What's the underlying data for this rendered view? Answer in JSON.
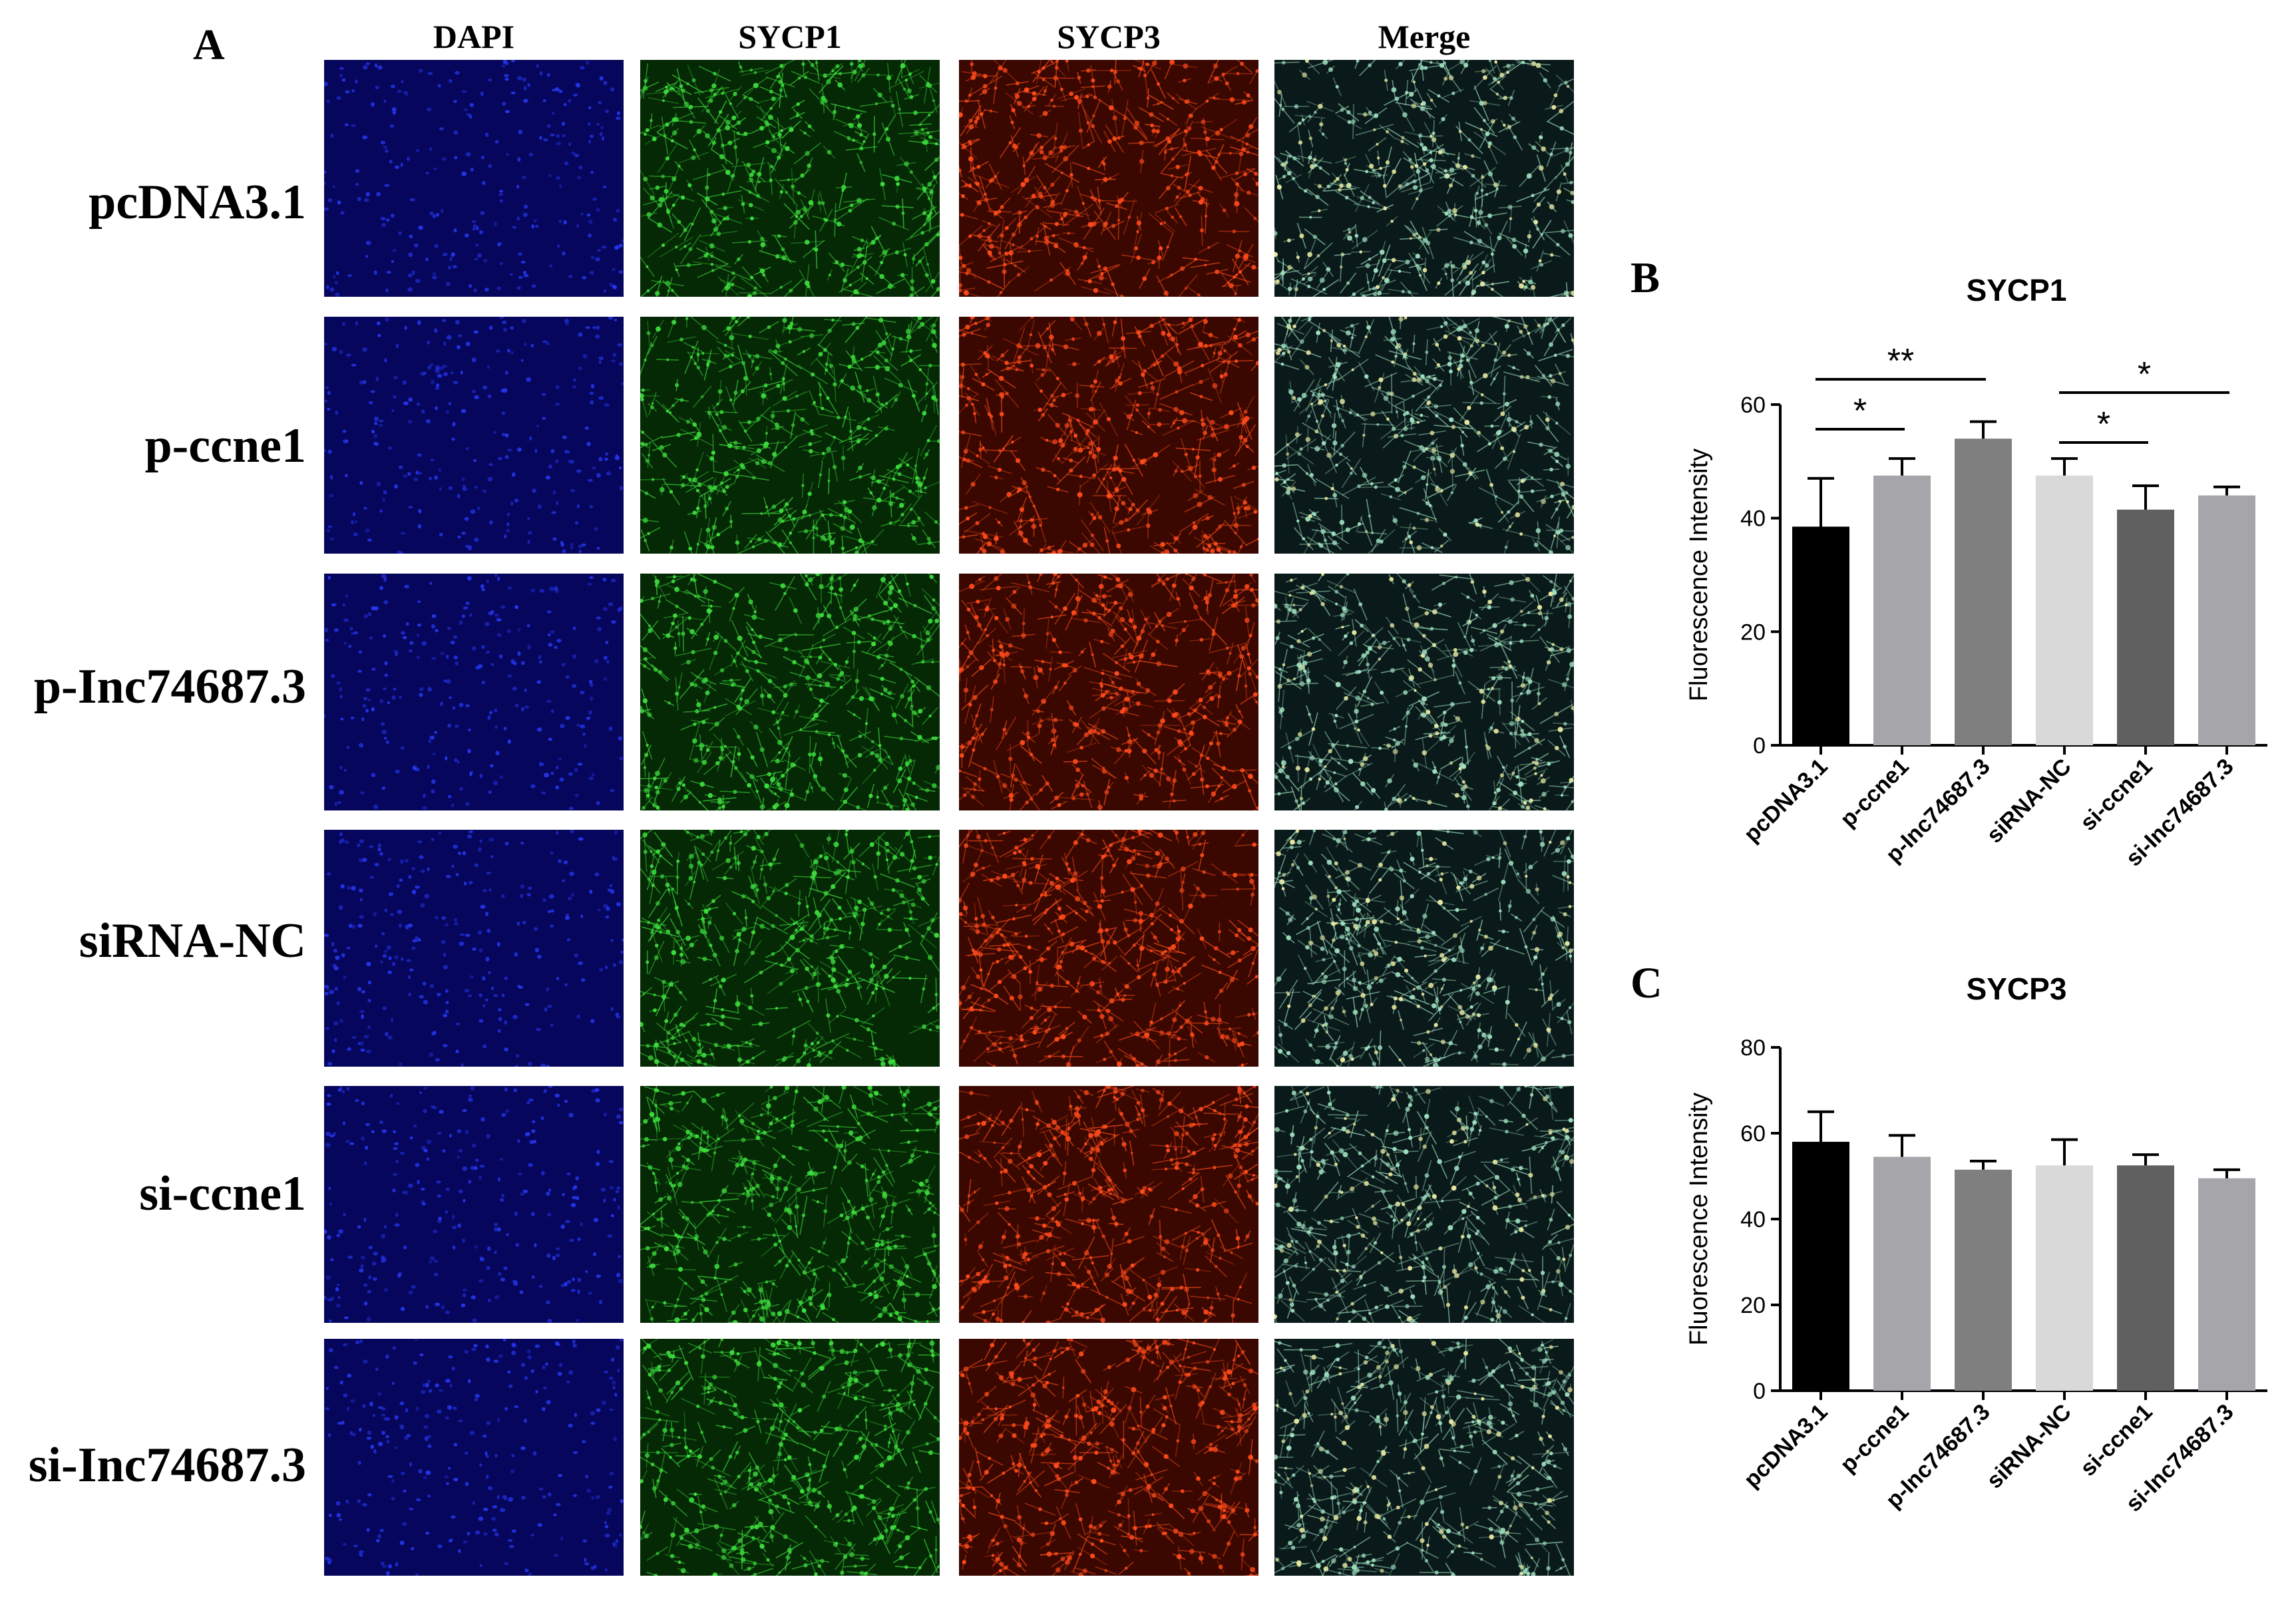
{
  "panels": {
    "A": "A",
    "B": "B",
    "C": "C"
  },
  "columns": [
    "DAPI",
    "SYCP1",
    "SYCP3",
    "Merge"
  ],
  "rows": [
    "pcDNA3.1",
    "p-ccne1",
    "p-Inc74687.3",
    "siRNA-NC",
    "si-ccne1",
    "si-Inc74687.3"
  ],
  "colors": {
    "dapi_bg": "#06065c",
    "dapi_cell": "#2a3cff",
    "sycp1_bg": "#052805",
    "sycp1_cell": "#3cdc3c",
    "sycp3_bg": "#3a0800",
    "sycp3_cell": "#ff4a1a",
    "merge_bg": "#0a1a1a",
    "merge_cell": "#9fe0c0",
    "bar_colors": [
      "#000000",
      "#a6a6aa",
      "#7f7f80",
      "#d9d9d9",
      "#606060",
      "#a6a6aa"
    ]
  },
  "chart_data": [
    {
      "type": "bar",
      "title": "SYCP1",
      "ylabel": "Fluorescence Intensity",
      "xlabel": "",
      "categories": [
        "pcDNA3.1",
        "p-ccne1",
        "p-Inc74687.3",
        "siRNA-NC",
        "si-ccne1",
        "si-Inc74687.3"
      ],
      "values": [
        38.5,
        47.5,
        54,
        47.5,
        41.5,
        44
      ],
      "errors": [
        8.5,
        3,
        3,
        3,
        4.2,
        1.5
      ],
      "ylim": [
        0,
        60
      ],
      "yticks": [
        0,
        20,
        40,
        60
      ],
      "significance": [
        {
          "from": 0,
          "to": 1,
          "label": "*"
        },
        {
          "from": 0,
          "to": 2,
          "label": "**"
        },
        {
          "from": 3,
          "to": 4,
          "label": "*"
        },
        {
          "from": 3,
          "to": 5,
          "label": "*"
        }
      ]
    },
    {
      "type": "bar",
      "title": "SYCP3",
      "ylabel": "Fluorescence Intensity",
      "xlabel": "",
      "categories": [
        "pcDNA3.1",
        "p-ccne1",
        "p-Inc74687.3",
        "siRNA-NC",
        "si-ccne1",
        "si-Inc74687.3"
      ],
      "values": [
        58,
        54.5,
        51.5,
        52.5,
        52.5,
        49.5
      ],
      "errors": [
        7,
        5,
        2,
        6,
        2.5,
        2
      ],
      "ylim": [
        0,
        80
      ],
      "yticks": [
        0,
        20,
        40,
        60,
        80
      ],
      "significance": []
    }
  ]
}
